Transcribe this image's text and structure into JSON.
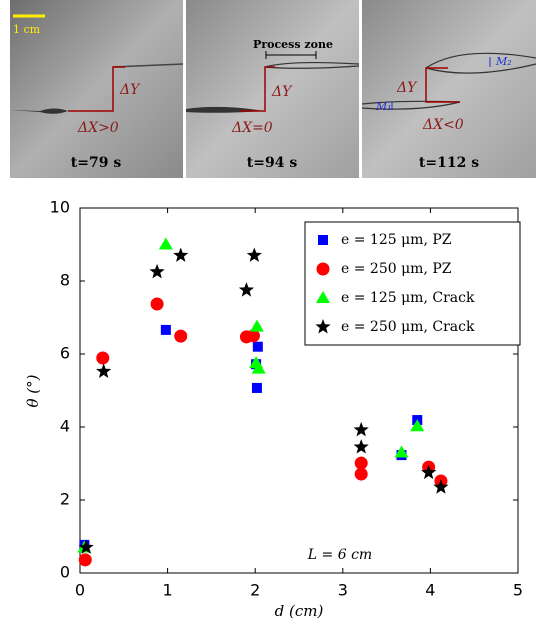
{
  "figure_panels": {
    "scale_bar": "1 cm",
    "process_zone": "Process zone",
    "panels": [
      {
        "dy": "ΔY",
        "dx": "ΔX>0",
        "time": "t=79 s"
      },
      {
        "dy": "ΔY",
        "dx": "ΔX=0",
        "time": "t=94 s"
      },
      {
        "dy": "ΔY",
        "dx": "ΔX<0",
        "time": "t=112 s"
      }
    ],
    "markers": [
      "M₁",
      "M₂"
    ]
  },
  "chart_data": {
    "type": "scatter",
    "x_label": "d (cm)",
    "y_label": "θ (°)",
    "annotation": "L = 6 cm",
    "xlim": [
      0,
      5
    ],
    "xticks": [
      0,
      1,
      2,
      3,
      4,
      5
    ],
    "ylim": [
      0,
      10
    ],
    "yticks": [
      0,
      2,
      4,
      6,
      8,
      10
    ],
    "grid": false,
    "legend_position": "upper right",
    "series": [
      {
        "name": "e = 125 μm, PZ",
        "color": "#0000ff",
        "marker": "square",
        "x": [
          0.05,
          0.98,
          2.03,
          2.01,
          2.02,
          3.67,
          3.85
        ],
        "values": [
          0.77,
          6.66,
          6.2,
          5.72,
          5.07,
          3.23,
          4.19
        ]
      },
      {
        "name": "e = 250 μm, PZ",
        "color": "#ff0000",
        "marker": "circle",
        "x": [
          0.06,
          0.26,
          0.88,
          1.15,
          1.9,
          1.98,
          3.21,
          3.21,
          3.98,
          4.12
        ],
        "values": [
          0.36,
          5.89,
          7.37,
          6.49,
          6.47,
          6.5,
          3.01,
          2.71,
          2.9,
          2.52
        ]
      },
      {
        "name": "e = 125 μm, Crack",
        "color": "#00ff00",
        "marker": "triangle",
        "x": [
          0.05,
          0.98,
          2.02,
          2.01,
          2.04,
          3.67,
          3.85
        ],
        "values": [
          0.7,
          9.0,
          6.75,
          5.75,
          5.6,
          3.3,
          4.02
        ]
      },
      {
        "name": "e = 250 μm, Crack",
        "color": "#000000",
        "marker": "star",
        "x": [
          0.07,
          0.27,
          0.88,
          1.15,
          1.9,
          1.99,
          3.21,
          3.21,
          3.98,
          4.12
        ],
        "values": [
          0.7,
          5.52,
          8.25,
          8.7,
          7.75,
          8.7,
          3.92,
          3.45,
          2.75,
          2.35
        ]
      }
    ]
  }
}
